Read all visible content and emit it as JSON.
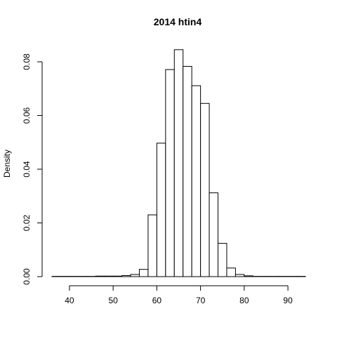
{
  "chart_data": {
    "type": "bar",
    "title": "2014 htin4",
    "xlabel": "",
    "ylabel": "Density",
    "bin_width": 2,
    "bin_starts": [
      36,
      38,
      40,
      42,
      44,
      46,
      48,
      50,
      52,
      54,
      56,
      58,
      60,
      62,
      64,
      66,
      68,
      70,
      72,
      74,
      76,
      78,
      80,
      82,
      84,
      86,
      88,
      90,
      92
    ],
    "values": [
      0.0001,
      0.0001,
      0.0001,
      0.0001,
      0.0001,
      0.0002,
      0.0002,
      0.0002,
      0.0004,
      0.0008,
      0.0027,
      0.023,
      0.0497,
      0.0771,
      0.0845,
      0.0783,
      0.0711,
      0.0645,
      0.0312,
      0.0124,
      0.0032,
      0.0008,
      0.0003,
      0.0001,
      0.0001,
      0.0001,
      0.0001,
      0.0001,
      0.0001
    ],
    "xlim": [
      36,
      94
    ],
    "ylim": [
      0,
      0.08
    ],
    "xticks": [
      "40",
      "50",
      "60",
      "70",
      "80",
      "90"
    ],
    "xtick_values": [
      40,
      50,
      60,
      70,
      80,
      90
    ],
    "yticks": [
      "0.00",
      "0.02",
      "0.04",
      "0.06",
      "0.08"
    ],
    "ytick_values": [
      0,
      0.02,
      0.04,
      0.06,
      0.08
    ]
  }
}
